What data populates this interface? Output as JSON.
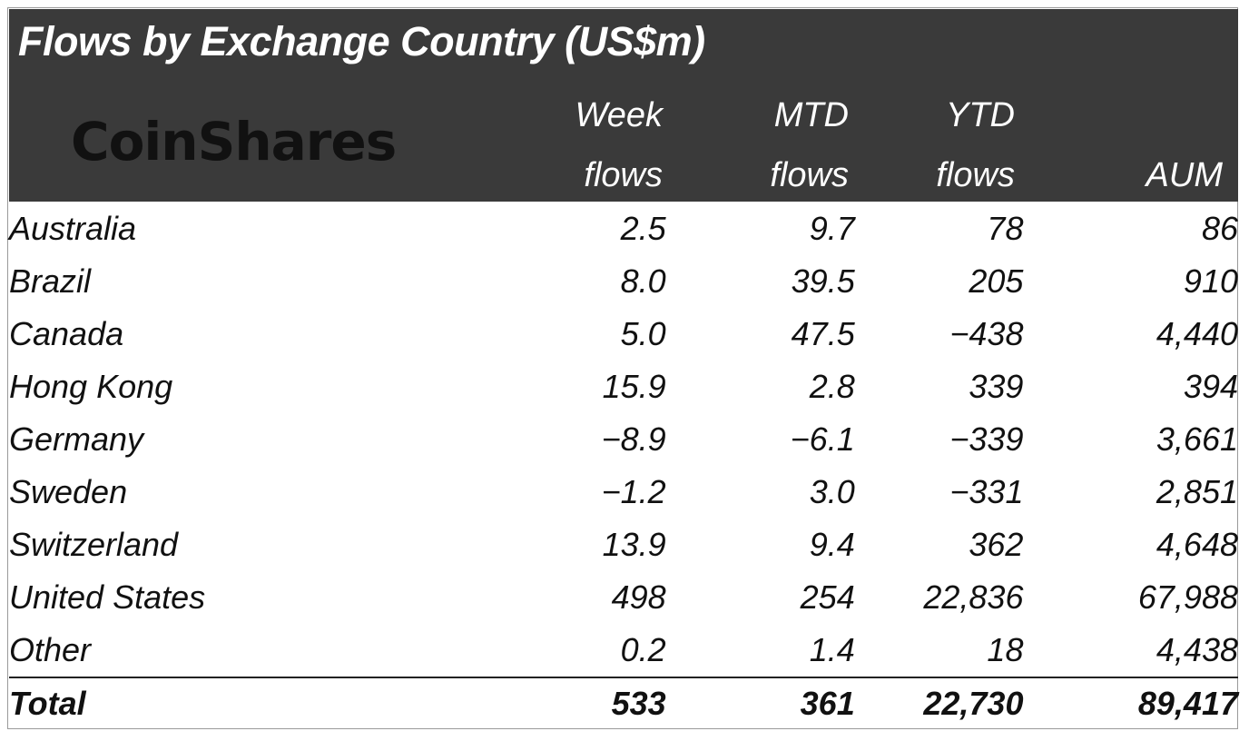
{
  "chart_data": {
    "type": "table",
    "title": "Flows by Exchange Country (US$m)",
    "columns": [
      {
        "line1": "Week",
        "line2": "flows"
      },
      {
        "line1": "MTD",
        "line2": "flows"
      },
      {
        "line1": "YTD",
        "line2": "flows"
      },
      {
        "line1": "",
        "line2": "AUM"
      }
    ],
    "rows": [
      {
        "name": "Australia",
        "values": [
          "2.5",
          "9.7",
          "78",
          "86"
        ]
      },
      {
        "name": "Brazil",
        "values": [
          "8.0",
          "39.5",
          "205",
          "910"
        ]
      },
      {
        "name": "Canada",
        "values": [
          "5.0",
          "47.5",
          "-438",
          "4,440"
        ]
      },
      {
        "name": "Hong Kong",
        "values": [
          "15.9",
          "2.8",
          "339",
          "394"
        ]
      },
      {
        "name": "Germany",
        "values": [
          "-8.9",
          "-6.1",
          "-339",
          "3,661"
        ]
      },
      {
        "name": "Sweden",
        "values": [
          "-1.2",
          "3.0",
          "-331",
          "2,851"
        ]
      },
      {
        "name": "Switzerland",
        "values": [
          "13.9",
          "9.4",
          "362",
          "4,648"
        ]
      },
      {
        "name": "United States",
        "values": [
          "498",
          "254",
          "22,836",
          "67,988"
        ]
      },
      {
        "name": "Other",
        "values": [
          "0.2",
          "1.4",
          "18",
          "4,438"
        ]
      }
    ],
    "total": {
      "name": "Total",
      "values": [
        "533",
        "361",
        "22,730",
        "89,417"
      ]
    }
  },
  "brand": {
    "logo_text": "CoinShares"
  },
  "colors": {
    "header_bg": "#3a3a3a",
    "negative": "#d42a2a",
    "text": "#111111"
  }
}
